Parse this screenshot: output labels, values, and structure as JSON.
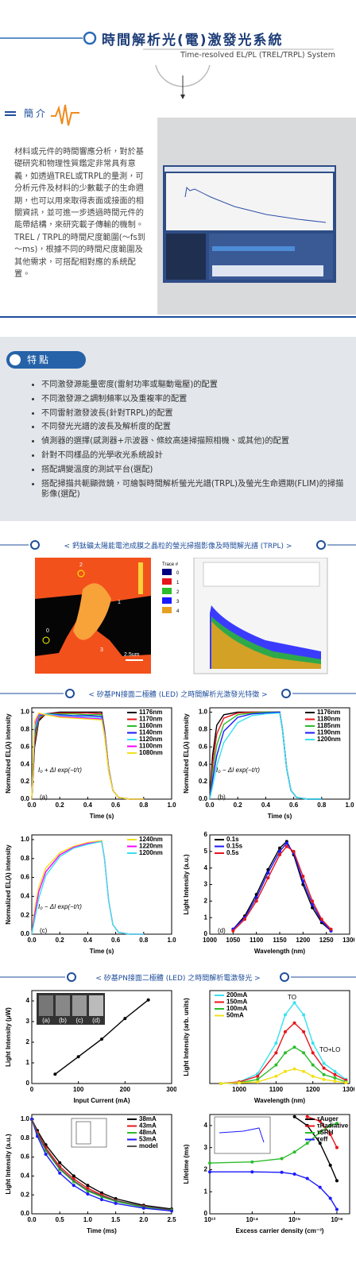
{
  "header": {
    "title": "時間解析光(電)激發光系統",
    "subtitle": "Time-resolved EL/PL (TREL/TRPL) System"
  },
  "intro": {
    "heading": "簡介",
    "paragraphs": [
      "材料或元件的時間響應分析，對於基礎研究和物理性質鑑定非常具有意義，如透過TREL或TRPL的量測，可分析元件及材料的少數載子的生命週期，也可以用來取得表面或接面的相關資訊，並可進一步透過時間元件的能帶結構，來研究載子傳輸的機制。",
      "TREL / TRPL的時間尺度範圍(～fs到～ms)，根據不同的時間尺度範圍及其他需求，可搭配相對應的系統配置。"
    ]
  },
  "features": {
    "heading": "特點",
    "items": [
      "不同激發源能量密度(雷射功率或驅動電壓)的配置",
      "不同激發源之調制頻率以及重複率的配置",
      "不同雷射激發波長(針對TRPL)的配置",
      "不同發光光譜的波長及解析度的配置",
      "偵測器的選擇(感測器+示波器、條紋高速掃描照相機、或其他)的配置",
      "針對不同樣品的光學收光系統設計",
      "搭配調變溫度的測試平台(選配)",
      "搭配掃描共軛顯微鏡，可繪製時間解析螢光光譜(TRPL)及螢光生命週期(FLIM)的掃描影像(選配)"
    ]
  },
  "sections": [
    "< 鈣鈦礦太陽能電池成膜之晶粒的螢光掃描影像及時間解光譜 (TRPL) >",
    "< 矽基PN接面二極體 (LED) 之時間解析光激發光特徵 >",
    "< 矽基PN接面二極體 (LED) 之時間解析電激發光 >"
  ],
  "image": {
    "points": [
      "0",
      "1",
      "2",
      "3"
    ],
    "scale": "2.5um",
    "legend_title": "Trace #",
    "traces": [
      "0",
      "1",
      "2",
      "3",
      "4"
    ]
  },
  "chart_data": [
    {
      "type": "line",
      "panel_label": "(a)",
      "formula": "I₀ + ΔI exp(−t/τ)",
      "xlabel": "Time (s)",
      "ylabel": "Normalized EL(λ) intensity",
      "xlim": [
        0,
        1
      ],
      "ylim": [
        0,
        1.05
      ],
      "xticks": [
        {
          "value": 0,
          "label": "0.0"
        },
        0.2,
        0.4,
        0.6,
        0.8,
        {
          "value": 1,
          "label": "1.0"
        }
      ],
      "yticks": [
        {
          "value": 0,
          "label": "0.0"
        },
        0.2,
        0.4,
        0.6,
        0.8,
        {
          "value": 1,
          "label": "1.0"
        }
      ],
      "legend": "upper right",
      "x": [
        0,
        0.02,
        0.05,
        0.1,
        0.2,
        0.3,
        0.4,
        0.5,
        0.52,
        0.55,
        0.58,
        0.62,
        0.7,
        0.8
      ],
      "series": [
        {
          "name": "1176nm",
          "color": "#000000",
          "values": [
            0,
            0.6,
            0.9,
            0.98,
            1,
            1,
            1,
            1,
            0.8,
            0.35,
            0.1,
            0.02,
            0,
            0
          ]
        },
        {
          "name": "1170nm",
          "color": "#e8141b",
          "values": [
            0,
            0.65,
            0.92,
            0.98,
            0.99,
            0.99,
            0.99,
            0.98,
            0.8,
            0.35,
            0.1,
            0.02,
            0,
            0
          ]
        },
        {
          "name": "1160nm",
          "color": "#2bbd2b",
          "values": [
            0,
            0.7,
            0.94,
            0.98,
            0.98,
            0.98,
            0.97,
            0.97,
            0.78,
            0.34,
            0.1,
            0.02,
            0,
            0
          ]
        },
        {
          "name": "1140nm",
          "color": "#1a1aff",
          "values": [
            0,
            0.75,
            0.96,
            0.98,
            0.97,
            0.96,
            0.96,
            0.95,
            0.77,
            0.33,
            0.1,
            0.02,
            0,
            0
          ]
        },
        {
          "name": "1120nm",
          "color": "#39e1f0",
          "values": [
            0,
            0.8,
            0.97,
            0.98,
            0.96,
            0.95,
            0.94,
            0.93,
            0.75,
            0.33,
            0.1,
            0.02,
            0,
            0
          ]
        },
        {
          "name": "1100nm",
          "color": "#ff00ff",
          "values": [
            0,
            0.85,
            0.98,
            0.97,
            0.95,
            0.94,
            0.93,
            0.92,
            0.74,
            0.32,
            0.1,
            0.02,
            0,
            0
          ]
        },
        {
          "name": "1080nm",
          "color": "#f2e21c",
          "values": [
            0,
            0.9,
            0.99,
            0.97,
            0.94,
            0.93,
            0.92,
            0.91,
            0.73,
            0.32,
            0.1,
            0.02,
            0,
            0
          ]
        }
      ]
    },
    {
      "type": "line",
      "panel_label": "(b)",
      "formula": "I₀ − ΔI exp(−t/τ)",
      "xlabel": "Time (s)",
      "ylabel": "Normalized EL(λ) intensity",
      "xlim": [
        0,
        1
      ],
      "ylim": [
        0,
        1.05
      ],
      "xticks": [
        {
          "value": 0,
          "label": "0.0"
        },
        0.2,
        0.4,
        0.6,
        0.8,
        {
          "value": 1,
          "label": "1.0"
        }
      ],
      "yticks": [
        {
          "value": 0,
          "label": "0.0"
        },
        0.2,
        0.4,
        0.6,
        0.8,
        {
          "value": 1,
          "label": "1.0"
        }
      ],
      "legend": "upper right",
      "x": [
        0,
        0.02,
        0.05,
        0.1,
        0.2,
        0.3,
        0.4,
        0.5,
        0.52,
        0.55,
        0.58,
        0.62,
        0.7,
        0.8
      ],
      "series": [
        {
          "name": "1176nm",
          "color": "#000000",
          "values": [
            0,
            0.5,
            0.85,
            0.97,
            1,
            1,
            1,
            1,
            0.8,
            0.35,
            0.1,
            0.02,
            0,
            0
          ]
        },
        {
          "name": "1180nm",
          "color": "#e8141b",
          "values": [
            0,
            0.4,
            0.75,
            0.93,
            0.99,
            1,
            1,
            1,
            0.8,
            0.35,
            0.1,
            0.02,
            0,
            0
          ]
        },
        {
          "name": "1185nm",
          "color": "#2bbd2b",
          "values": [
            0,
            0.3,
            0.62,
            0.86,
            0.97,
            0.99,
            1,
            1,
            0.8,
            0.35,
            0.1,
            0.02,
            0,
            0
          ]
        },
        {
          "name": "1190nm",
          "color": "#1a1aff",
          "values": [
            0,
            0.22,
            0.5,
            0.78,
            0.94,
            0.98,
            0.99,
            1,
            0.8,
            0.35,
            0.1,
            0.02,
            0,
            0
          ]
        },
        {
          "name": "1200nm",
          "color": "#39e1f0",
          "values": [
            0,
            0.15,
            0.38,
            0.65,
            0.88,
            0.96,
            0.98,
            0.99,
            0.8,
            0.35,
            0.1,
            0.02,
            0,
            0
          ]
        }
      ]
    },
    {
      "type": "line",
      "panel_label": "(c)",
      "formula": "I₀ − ΔI exp(−t/τ)",
      "xlabel": "Time (s)",
      "ylabel": "Normalized EL(λ) intensity",
      "xlim": [
        0,
        1
      ],
      "ylim": [
        0,
        1.05
      ],
      "xticks": [
        {
          "value": 0,
          "label": "0.0"
        },
        0.2,
        0.4,
        0.6,
        0.8,
        {
          "value": 1,
          "label": "1.0"
        }
      ],
      "yticks": [
        {
          "value": 0,
          "label": "0.0"
        },
        0.2,
        0.4,
        0.6,
        0.8,
        {
          "value": 1,
          "label": "1.0"
        }
      ],
      "legend": "upper right",
      "x": [
        0,
        0.02,
        0.05,
        0.1,
        0.2,
        0.3,
        0.4,
        0.5,
        0.52,
        0.55,
        0.58,
        0.62,
        0.7,
        0.8
      ],
      "series": [
        {
          "name": "1240nm",
          "color": "#f2e21c",
          "values": [
            0,
            0.25,
            0.5,
            0.7,
            0.86,
            0.93,
            0.97,
            0.99,
            0.8,
            0.35,
            0.1,
            0.02,
            0,
            0
          ]
        },
        {
          "name": "1220nm",
          "color": "#ff00ff",
          "values": [
            0,
            0.2,
            0.45,
            0.66,
            0.84,
            0.92,
            0.96,
            0.98,
            0.8,
            0.35,
            0.1,
            0.02,
            0,
            0
          ]
        },
        {
          "name": "1200nm",
          "color": "#39e1f0",
          "values": [
            0,
            0.15,
            0.38,
            0.62,
            0.82,
            0.91,
            0.95,
            0.98,
            0.8,
            0.35,
            0.1,
            0.02,
            0,
            0
          ]
        }
      ]
    },
    {
      "type": "line",
      "panel_label": "(d)",
      "markers": true,
      "xlabel": "Wavelength (nm)",
      "ylabel": "Light Intensity (a.u.)",
      "xlim": [
        1000,
        1300
      ],
      "ylim": [
        0,
        6
      ],
      "xticks": [
        1000,
        1050,
        1100,
        1150,
        1200,
        1250,
        1300
      ],
      "yticks": [
        0,
        1,
        2,
        3,
        4,
        5,
        6
      ],
      "legend": "upper left",
      "x": [
        1050,
        1075,
        1100,
        1125,
        1150,
        1165,
        1180,
        1200,
        1220,
        1240,
        1260
      ],
      "series": [
        {
          "name": "0.1s",
          "color": "#000000",
          "values": [
            0.3,
            1.1,
            2.4,
            3.9,
            5.2,
            5.6,
            4.8,
            3.0,
            1.6,
            0.7,
            0.2
          ]
        },
        {
          "name": "0.15s",
          "color": "#1a1aff",
          "values": [
            0.3,
            1.0,
            2.2,
            3.7,
            5.0,
            5.5,
            4.9,
            3.2,
            1.8,
            0.8,
            0.2
          ]
        },
        {
          "name": "0.5s",
          "color": "#e8141b",
          "values": [
            0.2,
            0.9,
            2.0,
            3.4,
            4.8,
            5.3,
            5.0,
            3.5,
            2.0,
            0.9,
            0.3
          ]
        }
      ]
    },
    {
      "type": "line",
      "markers": true,
      "xlabel": "Input Current (mA)",
      "ylabel": "Light Intensity (μW)",
      "inset_labels": [
        "(a)",
        "(b)",
        "(c)",
        "(d)"
      ],
      "xlim": [
        0,
        300
      ],
      "ylim": [
        0,
        4.5
      ],
      "xticks": [
        0,
        100,
        200,
        300
      ],
      "yticks": [
        0,
        1,
        2,
        3,
        4
      ],
      "x": [
        50,
        100,
        150,
        200,
        250
      ],
      "series": [
        {
          "color": "#000000",
          "values": [
            0.45,
            1.3,
            2.15,
            3.15,
            4.05
          ]
        }
      ]
    },
    {
      "type": "line",
      "markers": true,
      "xlabel": "Wavelength (nm)",
      "ylabel": "Light Intensity (arb. units)",
      "annotations": [
        "TO",
        "TO+LO"
      ],
      "xlim": [
        920,
        1300
      ],
      "ylim": [
        0,
        1.15
      ],
      "xticks": [
        1000,
        1100,
        1200,
        1300
      ],
      "yticks": [],
      "legend": "upper left",
      "x": [
        950,
        1000,
        1050,
        1100,
        1125,
        1150,
        1175,
        1200,
        1230,
        1260,
        1290
      ],
      "series": [
        {
          "name": "200mA",
          "color": "#39e1f0",
          "values": [
            0,
            0.02,
            0.12,
            0.5,
            0.85,
            1.0,
            0.85,
            0.5,
            0.25,
            0.15,
            0.05
          ]
        },
        {
          "name": "150mA",
          "color": "#e8141b",
          "values": [
            0,
            0.02,
            0.09,
            0.38,
            0.64,
            0.75,
            0.64,
            0.38,
            0.19,
            0.11,
            0.04
          ]
        },
        {
          "name": "100mA",
          "color": "#2bbd2b",
          "values": [
            0,
            0.01,
            0.05,
            0.23,
            0.38,
            0.45,
            0.38,
            0.23,
            0.11,
            0.07,
            0.02
          ]
        },
        {
          "name": "50mA",
          "color": "#f2e21c",
          "values": [
            0,
            0.01,
            0.02,
            0.09,
            0.15,
            0.18,
            0.15,
            0.09,
            0.05,
            0.03,
            0.01
          ]
        }
      ]
    },
    {
      "type": "line",
      "markers": true,
      "xlabel": "Time (ms)",
      "ylabel": "Light Intensity (a.u.)",
      "xlim": [
        0,
        2.5
      ],
      "ylim": [
        0,
        1.05
      ],
      "xticks": [
        {
          "value": 0,
          "label": "0.0"
        },
        0.5,
        {
          "value": 1,
          "label": "1.0"
        },
        1.5,
        {
          "value": 2,
          "label": "2.0"
        },
        2.5
      ],
      "yticks": [
        {
          "value": 0,
          "label": "0.0"
        },
        0.2,
        0.4,
        0.6,
        0.8,
        {
          "value": 1,
          "label": "1.0"
        }
      ],
      "legend": "upper right",
      "x": [
        0,
        0.1,
        0.25,
        0.5,
        0.75,
        1,
        1.25,
        1.5,
        2,
        2.5
      ],
      "series": [
        {
          "name": "38mA",
          "color": "#000000",
          "values": [
            1,
            0.88,
            0.73,
            0.54,
            0.4,
            0.3,
            0.22,
            0.16,
            0.09,
            0.05
          ]
        },
        {
          "name": "43mA",
          "color": "#e8141b",
          "values": [
            1,
            0.86,
            0.7,
            0.5,
            0.37,
            0.27,
            0.2,
            0.14,
            0.08,
            0.04
          ]
        },
        {
          "name": "48mA",
          "color": "#2bbd2b",
          "values": [
            1,
            0.84,
            0.67,
            0.47,
            0.34,
            0.24,
            0.18,
            0.13,
            0.07,
            0.04
          ]
        },
        {
          "name": "53mA",
          "color": "#1a1aff",
          "values": [
            1,
            0.82,
            0.63,
            0.43,
            0.3,
            0.21,
            0.15,
            0.11,
            0.06,
            0.03
          ]
        },
        {
          "name": "model",
          "color": "#555555",
          "markers": false,
          "values": [
            1,
            0.85,
            0.68,
            0.48,
            0.35,
            0.25,
            0.19,
            0.14,
            0.08,
            0.04
          ]
        }
      ]
    },
    {
      "type": "line",
      "markers": true,
      "xlog": true,
      "xlabel": "Excess carrier density (cm⁻³)",
      "ylabel": "Lifetime (ms)",
      "xlim": [
        10000000000000.0,
        2e+16
      ],
      "ylim": [
        0,
        4.5
      ],
      "xticks": [
        {
          "value": 10000000000000.0,
          "label": "10¹³"
        },
        {
          "value": 100000000000000.0,
          "label": "10¹⁴"
        },
        {
          "value": 1000000000000000.0,
          "label": "10¹⁵"
        },
        {
          "value": 1e+16,
          "label": "10¹⁶"
        }
      ],
      "yticks": [
        0,
        1,
        2,
        3,
        4
      ],
      "legend": "upper right",
      "x": [
        10000000000000.0,
        100000000000000.0,
        500000000000000.0,
        1000000000000000.0,
        2000000000000000.0,
        4000000000000000.0,
        7000000000000000.0,
        1e+16
      ],
      "series": [
        {
          "name": "τAuger",
          "color": "#000000",
          "values": [
            null,
            null,
            null,
            4.4,
            4.0,
            3.2,
            2.2,
            1.5
          ]
        },
        {
          "name": "τRadiative",
          "color": "#e8141b",
          "values": [
            null,
            null,
            null,
            null,
            4.4,
            4.2,
            3.6,
            3.0
          ]
        },
        {
          "name": "τSRH",
          "color": "#2bbd2b",
          "values": [
            2.3,
            2.35,
            2.5,
            2.8,
            3.2,
            3.7,
            4.0,
            4.1
          ]
        },
        {
          "name": "τeff",
          "color": "#1a1aff",
          "values": [
            1.9,
            1.9,
            1.88,
            1.8,
            1.6,
            1.2,
            0.7,
            0.2
          ]
        }
      ]
    }
  ]
}
